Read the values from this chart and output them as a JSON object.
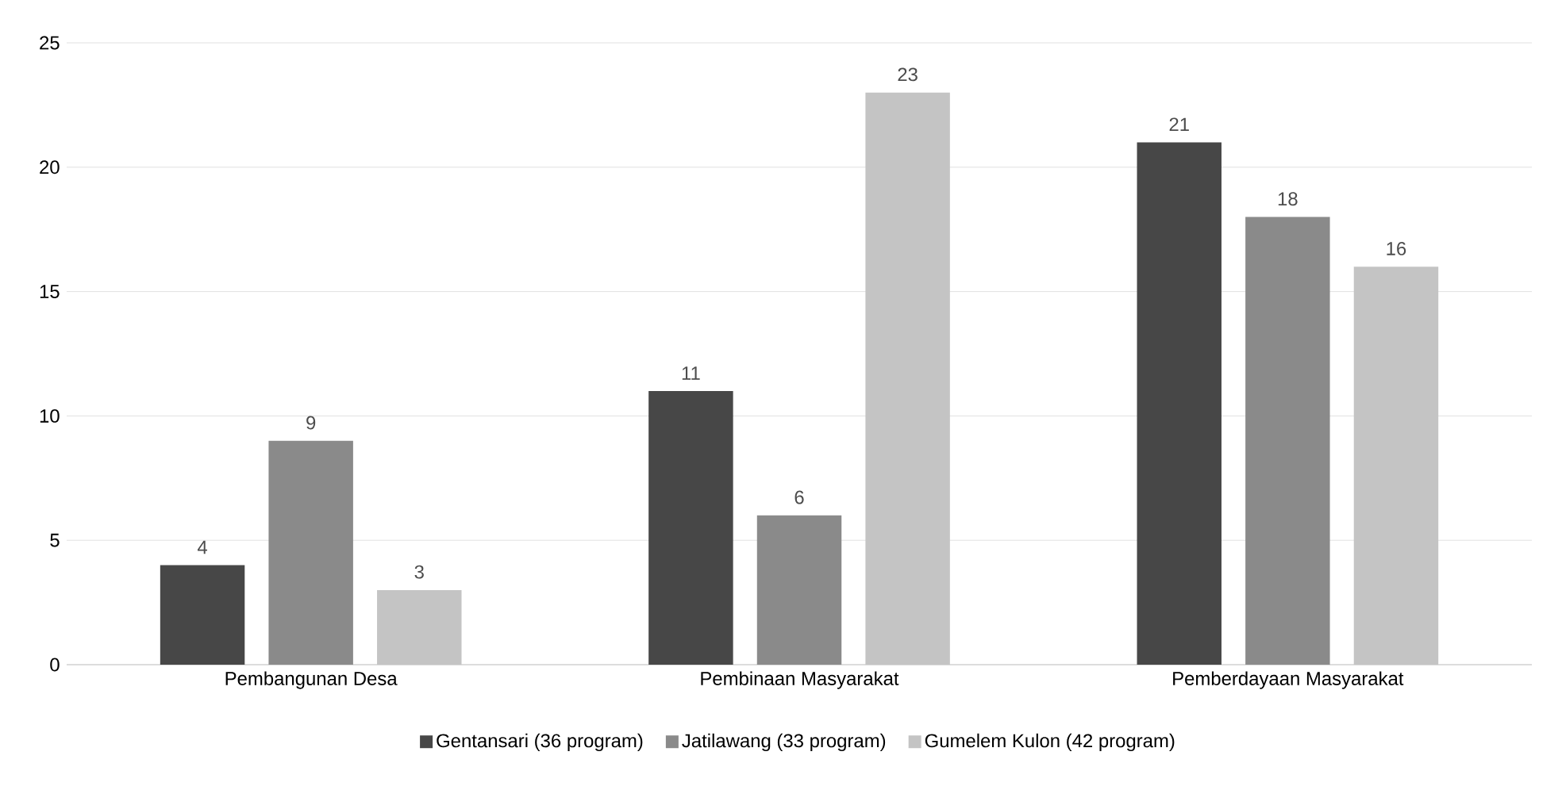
{
  "chart_data": {
    "type": "bar",
    "categories": [
      "Pembangunan Desa",
      "Pembinaan Masyarakat",
      "Pemberdayaan Masyarakat"
    ],
    "series": [
      {
        "name": "Gentansari (36 program)",
        "color": "#474747",
        "values": [
          4,
          11,
          21
        ]
      },
      {
        "name": "Jatilawang (33 program)",
        "color": "#8a8a8a",
        "values": [
          9,
          6,
          18
        ]
      },
      {
        "name": "Gumelem Kulon (42 program)",
        "color": "#c4c4c4",
        "values": [
          3,
          23,
          16
        ]
      }
    ],
    "ylim": [
      0,
      25
    ],
    "yticks": [
      0,
      5,
      10,
      15,
      20,
      25
    ],
    "grid": "y",
    "legend": "bottom",
    "data_labels": true
  }
}
